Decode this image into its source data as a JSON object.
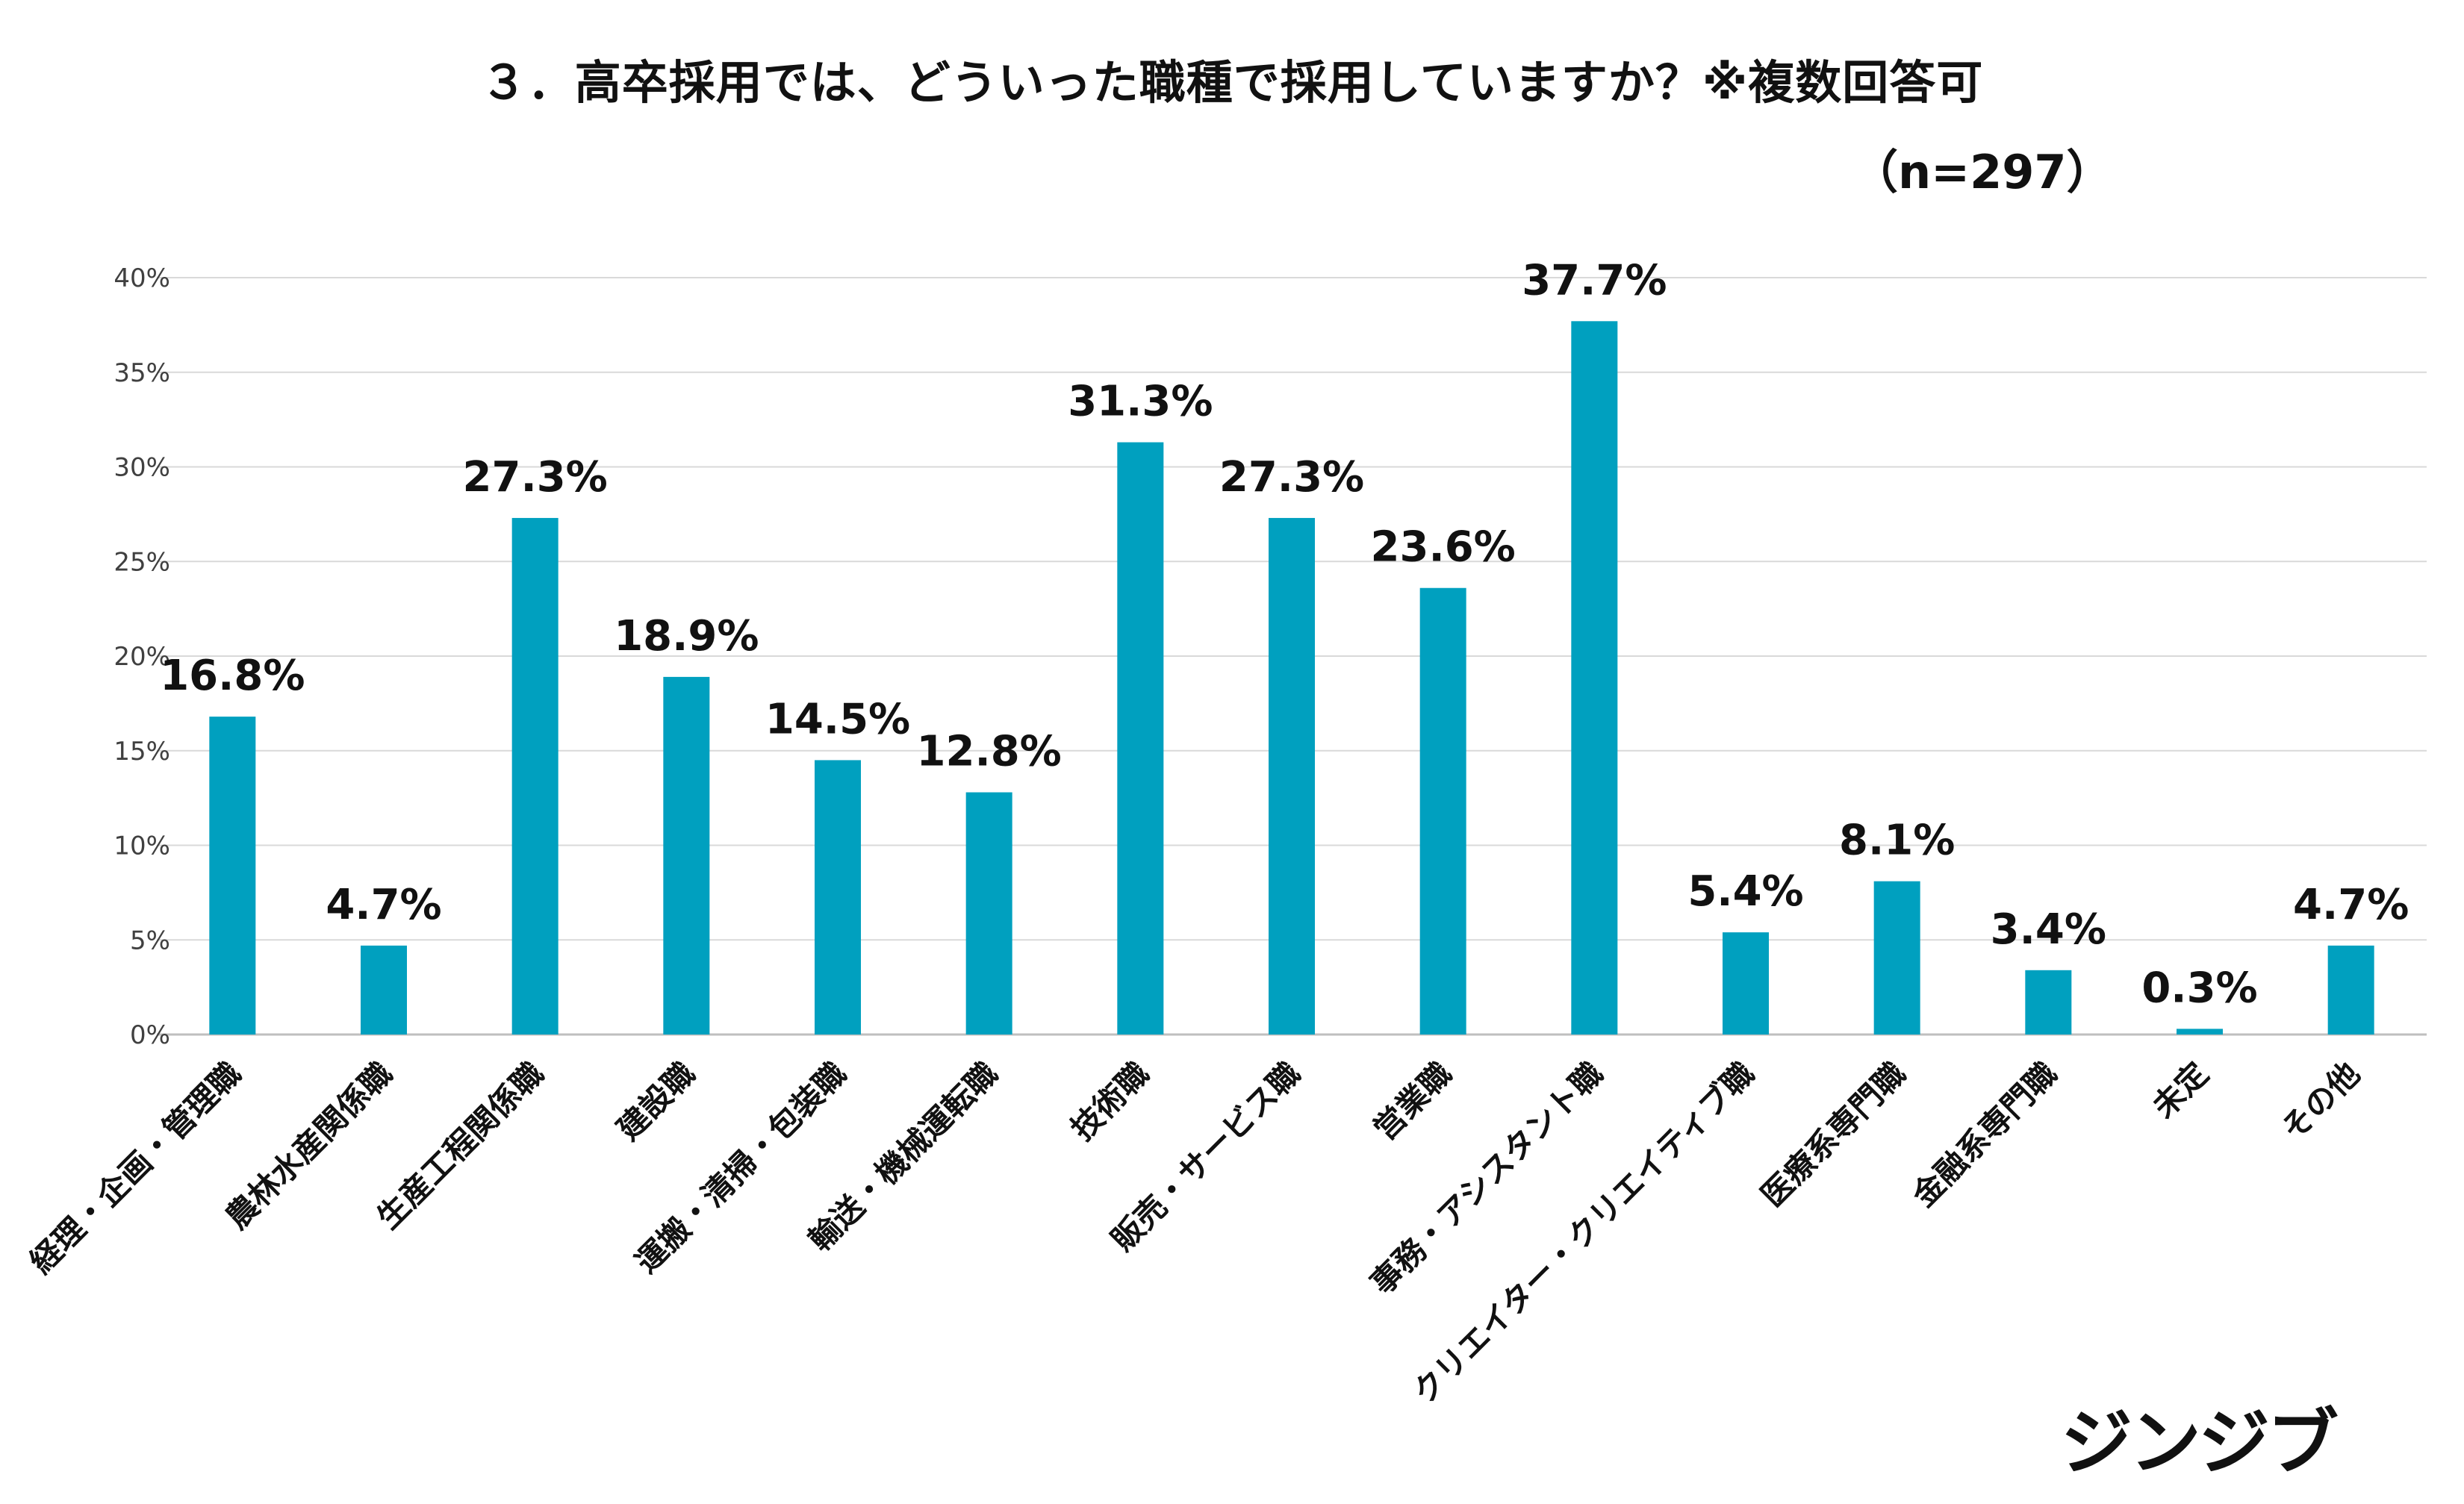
{
  "title": "３．高卒採用では、どういった職種で採用していますか？※複数回答可",
  "subtitle": "（n=297）",
  "logo": "ジンジブ",
  "chart_data": {
    "type": "bar",
    "title": "３．高卒採用では、どういった職種で採用していますか？※複数回答可",
    "subtitle": "（n=297）",
    "categories": [
      "経理・企画・管理職",
      "農林水産関係職",
      "生産工程関係職",
      "建設職",
      "運搬・清掃・包装職",
      "輸送・機械運転職",
      "技術職",
      "販売・サービス職",
      "営業職",
      "事務・アシスタント職",
      "クリエイター・クリエイティブ職",
      "医療系専門職",
      "金融系専門職",
      "未定",
      "その他"
    ],
    "values": [
      16.8,
      4.7,
      27.3,
      18.9,
      14.5,
      12.8,
      31.3,
      27.3,
      23.6,
      37.7,
      5.4,
      8.1,
      3.4,
      0.3,
      4.7
    ],
    "data_labels": [
      "16.8%",
      "4.7%",
      "27.3%",
      "18.9%",
      "14.5%",
      "12.8%",
      "31.3%",
      "27.3%",
      "23.6%",
      "37.7%",
      "5.4%",
      "8.1%",
      "3.4%",
      "0.3%",
      "4.7%"
    ],
    "y_ticks": [
      "0%",
      "5%",
      "10%",
      "15%",
      "20%",
      "25%",
      "30%",
      "35%",
      "40%"
    ],
    "ylim": [
      0,
      40
    ],
    "grid": true,
    "bar_color": "#00a0bf",
    "xlabel": "",
    "ylabel": ""
  }
}
